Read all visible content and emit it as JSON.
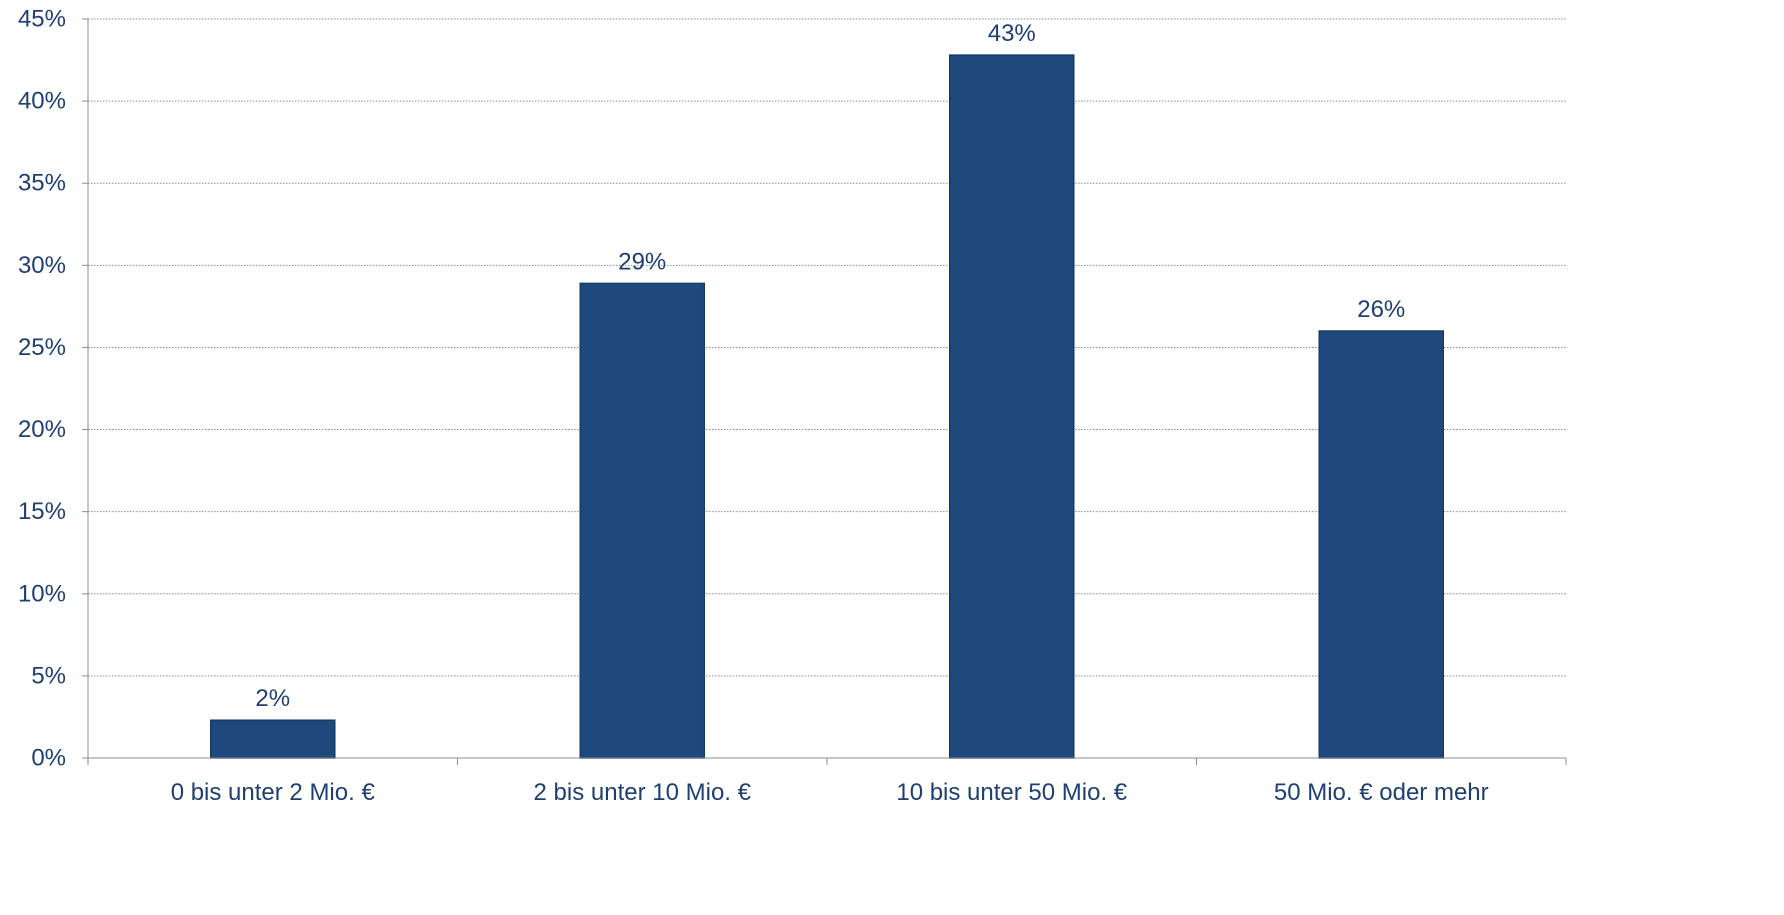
{
  "chart_data": {
    "type": "bar",
    "title": "",
    "xlabel": "",
    "ylabel": "",
    "categories": [
      "0 bis unter 2 Mio. €",
      "2 bis unter 10 Mio. €",
      "10 bis unter 50 Mio. €",
      "50 Mio. € oder mehr"
    ],
    "values": [
      2.3,
      28.9,
      42.8,
      26.0
    ],
    "data_labels": [
      "2%",
      "29%",
      "43%",
      "26%"
    ],
    "ylim": [
      0,
      45
    ],
    "yticks": [
      0,
      5,
      10,
      15,
      20,
      25,
      30,
      35,
      40,
      45
    ],
    "ytick_labels": [
      "0%",
      "5%",
      "10%",
      "15%",
      "20%",
      "25%",
      "30%",
      "35%",
      "40%",
      "45%"
    ],
    "grid": true,
    "legend": "none",
    "colors": {
      "bar": "#1f497d",
      "bar_edge": "#163a66",
      "text": "#1f3f73",
      "axis": "#8c8c8c",
      "grid": "#8c8c8c"
    }
  }
}
